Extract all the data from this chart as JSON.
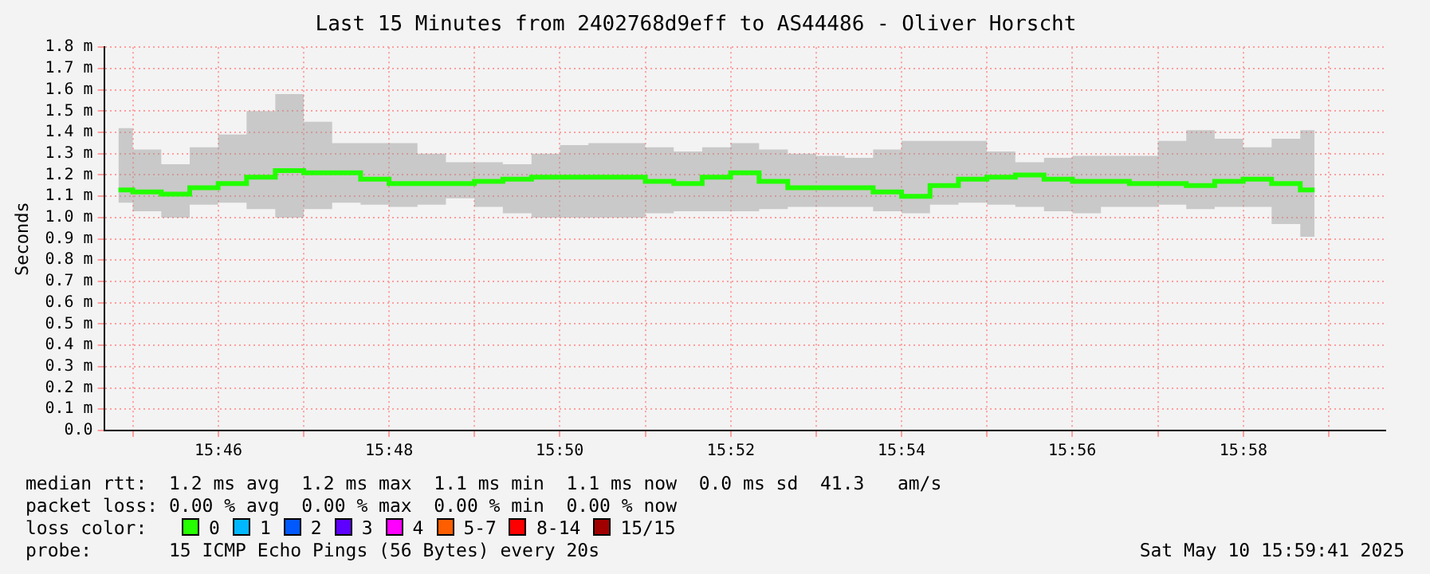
{
  "chart_data": {
    "type": "step",
    "title": "Last 15 Minutes from 2402768d9eff to AS44486 - Oliver Horscht",
    "ylabel": "Seconds",
    "x": [
      15.7472,
      15.7528,
      15.7583,
      15.7639,
      15.7694,
      15.775,
      15.7806,
      15.7861,
      15.7917,
      15.7972,
      15.8028,
      15.8083,
      15.8139,
      15.8194,
      15.825,
      15.8306,
      15.8361,
      15.8417,
      15.8472,
      15.8528,
      15.8583,
      15.8639,
      15.8694,
      15.875,
      15.8806,
      15.8861,
      15.8917,
      15.8972,
      15.9028,
      15.9083,
      15.9139,
      15.9194,
      15.925,
      15.9306,
      15.9361,
      15.9417,
      15.9472,
      15.9528,
      15.9583,
      15.9639,
      15.9694,
      15.975,
      15.9806
    ],
    "series": [
      {
        "color": "#22ff00",
        "values": [
          1.13,
          1.12,
          1.11,
          1.14,
          1.16,
          1.19,
          1.22,
          1.21,
          1.21,
          1.18,
          1.16,
          1.16,
          1.16,
          1.17,
          1.18,
          1.19,
          1.19,
          1.19,
          1.19,
          1.17,
          1.16,
          1.19,
          1.21,
          1.17,
          1.14,
          1.14,
          1.14,
          1.12,
          1.1,
          1.15,
          1.18,
          1.19,
          1.2,
          1.18,
          1.17,
          1.17,
          1.16,
          1.16,
          1.15,
          1.17,
          1.18,
          1.16,
          1.13
        ],
        "lower": [
          1.07,
          1.03,
          1.0,
          1.06,
          1.07,
          1.04,
          1.0,
          1.04,
          1.07,
          1.06,
          1.05,
          1.06,
          1.09,
          1.05,
          1.02,
          1.0,
          1.0,
          1.0,
          1.0,
          1.02,
          1.03,
          1.03,
          1.03,
          1.04,
          1.05,
          1.05,
          1.05,
          1.03,
          1.02,
          1.06,
          1.07,
          1.06,
          1.05,
          1.03,
          1.02,
          1.05,
          1.05,
          1.06,
          1.04,
          1.05,
          1.05,
          0.97,
          0.91
        ],
        "upper": [
          1.42,
          1.32,
          1.25,
          1.33,
          1.39,
          1.5,
          1.58,
          1.45,
          1.35,
          1.35,
          1.35,
          1.3,
          1.26,
          1.26,
          1.25,
          1.3,
          1.34,
          1.35,
          1.35,
          1.33,
          1.31,
          1.33,
          1.35,
          1.32,
          1.3,
          1.29,
          1.28,
          1.32,
          1.36,
          1.36,
          1.36,
          1.31,
          1.26,
          1.28,
          1.29,
          1.29,
          1.29,
          1.36,
          1.41,
          1.37,
          1.33,
          1.37,
          1.41
        ]
      }
    ],
    "xlim": [
      15.7444,
      15.9944
    ],
    "xticks": [
      {
        "value": 15.75,
        "label": null
      },
      {
        "value": 15.7667,
        "label": "15:46"
      },
      {
        "value": 15.7833,
        "label": null
      },
      {
        "value": 15.8,
        "label": "15:48"
      },
      {
        "value": 15.8167,
        "label": null
      },
      {
        "value": 15.8333,
        "label": "15:50"
      },
      {
        "value": 15.85,
        "label": null
      },
      {
        "value": 15.8667,
        "label": "15:52"
      },
      {
        "value": 15.8833,
        "label": null
      },
      {
        "value": 15.9,
        "label": "15:54"
      },
      {
        "value": 15.9167,
        "label": null
      },
      {
        "value": 15.9333,
        "label": "15:56"
      },
      {
        "value": 15.95,
        "label": null
      },
      {
        "value": 15.9667,
        "label": "15:58"
      },
      {
        "value": 15.9833,
        "label": null
      }
    ],
    "ylim": [
      0,
      1.8
    ],
    "yticks": [
      {
        "value": 0,
        "label": "0.0"
      },
      {
        "value": 0.1,
        "label": "0.1 m"
      },
      {
        "value": 0.2,
        "label": "0.2 m"
      },
      {
        "value": 0.3,
        "label": "0.3 m"
      },
      {
        "value": 0.4,
        "label": "0.4 m"
      },
      {
        "value": 0.5,
        "label": "0.5 m"
      },
      {
        "value": 0.6,
        "label": "0.6 m"
      },
      {
        "value": 0.7,
        "label": "0.7 m"
      },
      {
        "value": 0.8,
        "label": "0.8 m"
      },
      {
        "value": 0.9,
        "label": "0.9 m"
      },
      {
        "value": 1.0,
        "label": "1.0 m"
      },
      {
        "value": 1.1,
        "label": "1.1 m"
      },
      {
        "value": 1.2,
        "label": "1.2 m"
      },
      {
        "value": 1.3,
        "label": "1.3 m"
      },
      {
        "value": 1.4,
        "label": "1.4 m"
      },
      {
        "value": 1.5,
        "label": "1.5 m"
      },
      {
        "value": 1.6,
        "label": "1.6 m"
      },
      {
        "value": 1.7,
        "label": "1.7 m"
      },
      {
        "value": 1.8,
        "label": "1.8 m"
      }
    ],
    "grid": true,
    "annotations": [
      "median rtt:  1.2 ms avg  1.2 ms max  1.1 ms min  1.1 ms now  0.0 ms sd  41.3   am/s",
      "packet loss: 0.00 % avg  0.00 % max  0.00 % min  0.00 % now",
      "loss color:",
      "0",
      "1",
      "2",
      "3",
      "4",
      "5-7",
      "8-14",
      "15/15",
      "probe:       15 ICMP Echo Pings (56 Bytes) every 20s",
      "Sat May 10 15:59:41 2025"
    ]
  }
}
